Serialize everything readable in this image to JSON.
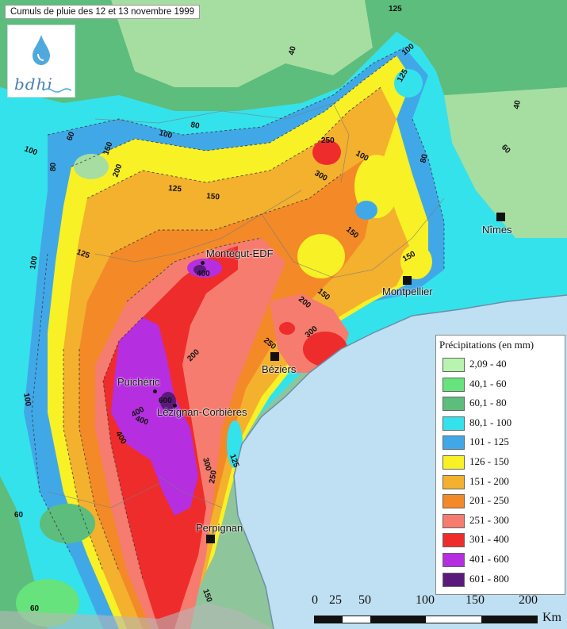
{
  "title": "Cumuls de pluie des 12 et 13 novembre 1999",
  "logo": {
    "text": "bdhi",
    "icon": "water-drop-icon"
  },
  "legend": {
    "title": "Précipitations (en mm)",
    "items": [
      {
        "label": "2,09 - 40",
        "color": "#b9f3b0"
      },
      {
        "label": "40,1 - 60",
        "color": "#66e37c"
      },
      {
        "label": "60,1 - 80",
        "color": "#5cbd7d"
      },
      {
        "label": "80,1 - 100",
        "color": "#34e2ec"
      },
      {
        "label": "101 - 125",
        "color": "#41a8e8"
      },
      {
        "label": "126 - 150",
        "color": "#f7f126"
      },
      {
        "label": "151 - 200",
        "color": "#f3b12e"
      },
      {
        "label": "201 - 250",
        "color": "#f38a27"
      },
      {
        "label": "251 - 300",
        "color": "#f57c6e"
      },
      {
        "label": "301 - 400",
        "color": "#ef2c2c"
      },
      {
        "label": "401 - 600",
        "color": "#b52ee0"
      },
      {
        "label": "601 - 800",
        "color": "#5a1a7c"
      }
    ]
  },
  "cities": [
    {
      "name": "Nîmes",
      "marker": "square"
    },
    {
      "name": "Montpellier",
      "marker": "square"
    },
    {
      "name": "Béziers",
      "marker": "square"
    },
    {
      "name": "Perpignan",
      "marker": "square"
    },
    {
      "name": "Montégut-EDF",
      "marker": "dot"
    },
    {
      "name": "Puichéric",
      "marker": "dot"
    },
    {
      "name": "Lézignan-Corbières",
      "marker": "dot"
    }
  ],
  "isohyet_labels": [
    "125",
    "40",
    "100",
    "125",
    "100",
    "80",
    "100",
    "60",
    "80",
    "150",
    "200",
    "125",
    "150",
    "250",
    "300",
    "100",
    "80",
    "40",
    "60",
    "150",
    "150",
    "125",
    "100",
    "400",
    "200",
    "150",
    "250",
    "300",
    "200",
    "400",
    "600",
    "400",
    "400",
    "300",
    "250",
    "125",
    "100",
    "60",
    "60",
    "150"
  ],
  "scale": {
    "ticks": [
      "0",
      "25",
      "50",
      "100",
      "150",
      "200"
    ],
    "unit": "Km"
  }
}
